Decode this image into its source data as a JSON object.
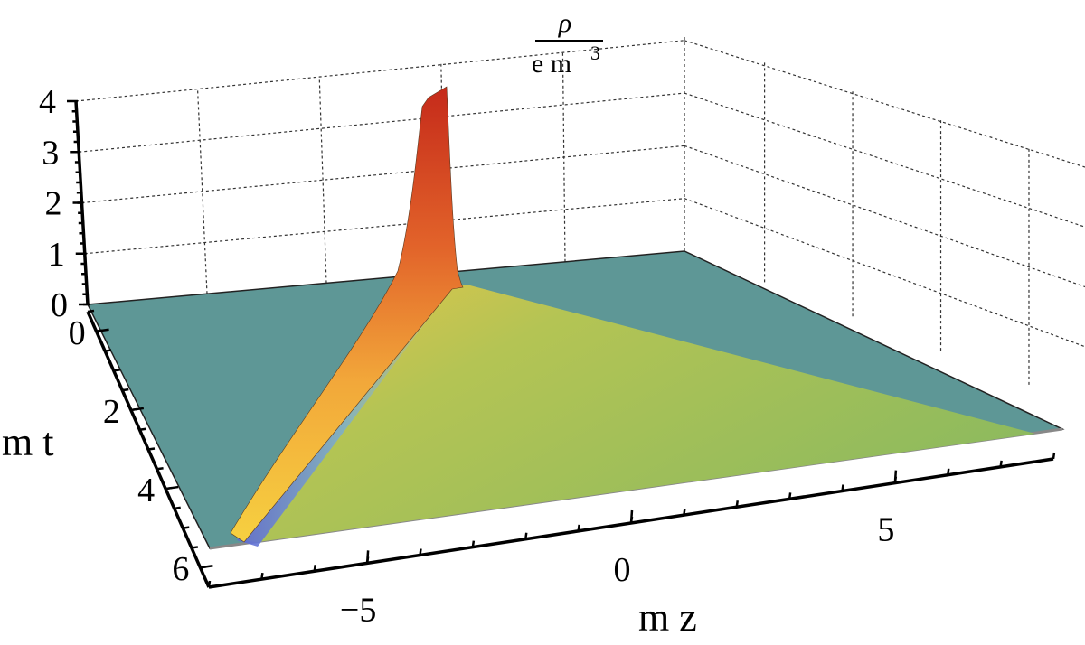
{
  "chart_data": {
    "type": "surface3d",
    "title": "",
    "zlabel": {
      "numerator": "ρ",
      "denominator_base": "e m",
      "denominator_exp": "3"
    },
    "xlabel": "m z",
    "ylabel": "m t",
    "z_ticks": [
      "0",
      "1",
      "2",
      "3",
      "4"
    ],
    "t_ticks": [
      "0",
      "2",
      "4",
      "6"
    ],
    "z_axis_ticks": [
      "−5",
      "0",
      "5"
    ],
    "zlim": [
      0,
      4
    ],
    "tlim": [
      0,
      7
    ],
    "xlim": [
      -8,
      8
    ],
    "peak": {
      "mz": -4,
      "mt": 0,
      "value": 4
    },
    "colors": {
      "plane": "#5e9796",
      "cone": "#95bd5c",
      "cone_edge": "#e3c447",
      "ridge_low": "#3b4fd6",
      "ridge_mid": "#f2a03a",
      "ridge_high": "#c52a1a"
    }
  }
}
